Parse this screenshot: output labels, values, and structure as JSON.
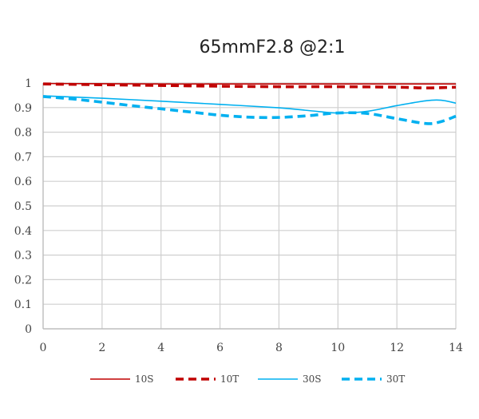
{
  "chart_data": {
    "type": "line",
    "title": "65mmF2.8 @2:1",
    "xlabel": "",
    "ylabel": "",
    "xlim": [
      0,
      14
    ],
    "ylim": [
      0,
      1
    ],
    "x_ticks": [
      "0",
      "2",
      "4",
      "6",
      "8",
      "10",
      "12",
      "14"
    ],
    "y_ticks": [
      "0",
      "0.1",
      "0.2",
      "0.3",
      "0.4",
      "0.5",
      "0.6",
      "0.7",
      "0.8",
      "0.9",
      "1"
    ],
    "grid": true,
    "legend_position": "bottom",
    "series": [
      {
        "name": "10S",
        "color": "#c00000",
        "dash": "solid",
        "x": [
          0,
          2,
          4,
          6,
          8,
          10,
          12,
          13,
          14
        ],
        "y": [
          0.998,
          0.997,
          0.996,
          0.996,
          0.996,
          0.996,
          0.996,
          0.996,
          0.996
        ]
      },
      {
        "name": "10T",
        "color": "#c00000",
        "dash": "dashed",
        "x": [
          0,
          2,
          4,
          6,
          8,
          10,
          12,
          13,
          14
        ],
        "y": [
          0.996,
          0.993,
          0.99,
          0.987,
          0.985,
          0.985,
          0.983,
          0.98,
          0.983
        ]
      },
      {
        "name": "30S",
        "color": "#00b0f0",
        "dash": "solid",
        "x": [
          0,
          2,
          4,
          6,
          8,
          9,
          10,
          11,
          12,
          13,
          13.5,
          14
        ],
        "y": [
          0.948,
          0.938,
          0.926,
          0.913,
          0.899,
          0.888,
          0.878,
          0.885,
          0.908,
          0.928,
          0.93,
          0.918
        ]
      },
      {
        "name": "30T",
        "color": "#00b0f0",
        "dash": "dashed",
        "x": [
          0,
          1,
          2,
          3,
          4,
          5,
          6,
          7,
          8,
          9,
          10,
          11,
          12,
          13,
          13.5,
          14
        ],
        "y": [
          0.945,
          0.935,
          0.922,
          0.908,
          0.895,
          0.882,
          0.869,
          0.861,
          0.86,
          0.867,
          0.878,
          0.876,
          0.855,
          0.835,
          0.843,
          0.865
        ]
      }
    ]
  }
}
